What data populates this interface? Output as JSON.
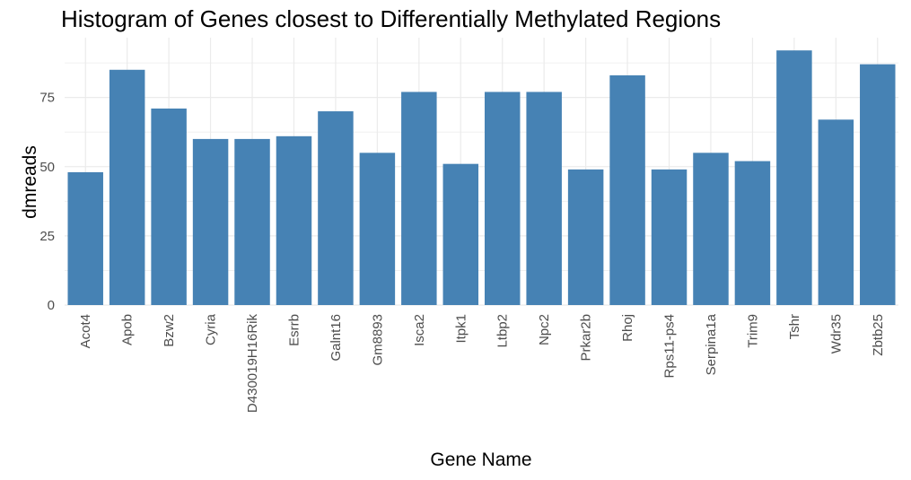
{
  "chart_data": {
    "type": "bar",
    "title": "Histogram of Genes closest to Differentially Methylated Regions",
    "xlabel": "Gene Name",
    "ylabel": "dmreads",
    "categories": [
      "Acot4",
      "Apob",
      "Bzw2",
      "Cyria",
      "D430019H16Rik",
      "Esrrb",
      "Galnt16",
      "Gm8893",
      "Isca2",
      "Itpk1",
      "Ltbp2",
      "Npc2",
      "Prkar2b",
      "Rhoj",
      "Rps11-ps4",
      "Serpina1a",
      "Trim9",
      "Tshr",
      "Wdr35",
      "Zbtb25"
    ],
    "values": [
      48,
      85,
      71,
      60,
      60,
      61,
      70,
      55,
      77,
      51,
      77,
      77,
      49,
      83,
      49,
      55,
      52,
      92,
      67,
      87
    ],
    "ylim": [
      0,
      96.6
    ],
    "yticks": [
      0,
      25,
      50,
      75
    ],
    "grid": true,
    "bar_color": "#4682b4"
  }
}
